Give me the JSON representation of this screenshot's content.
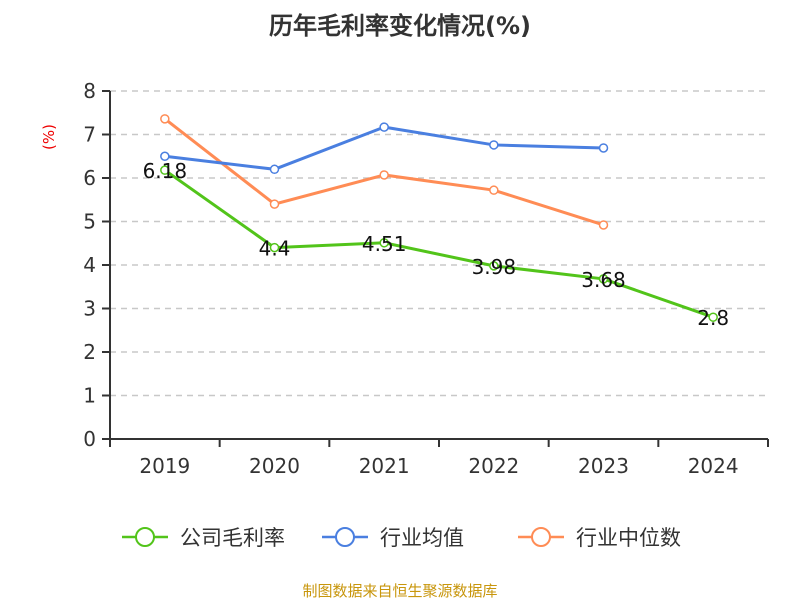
{
  "chart_data": {
    "type": "line",
    "title": "历年毛利率变化情况(%)",
    "ylabel": "(%)",
    "xlabel": "",
    "categories": [
      "2019",
      "2020",
      "2021",
      "2022",
      "2023",
      "2024"
    ],
    "ylim": [
      0,
      8
    ],
    "yticks": [
      0,
      1,
      2,
      3,
      4,
      5,
      6,
      7,
      8
    ],
    "grid": true,
    "legend_position": "bottom",
    "series": [
      {
        "name": "公司毛利率",
        "color": "#52c41a",
        "values": [
          6.18,
          4.4,
          4.51,
          3.98,
          3.68,
          2.8
        ],
        "labels": [
          "6.18",
          "4.4",
          "4.51",
          "3.98",
          "3.68",
          "2.8"
        ]
      },
      {
        "name": "行业均值",
        "color": "#4a7fe0",
        "values": [
          6.5,
          6.2,
          7.17,
          6.76,
          6.69,
          null
        ]
      },
      {
        "name": "行业中位数",
        "color": "#ff8c55",
        "values": [
          7.36,
          5.4,
          6.07,
          5.72,
          4.92,
          null
        ]
      }
    ]
  },
  "source": "制图数据来自恒生聚源数据库"
}
